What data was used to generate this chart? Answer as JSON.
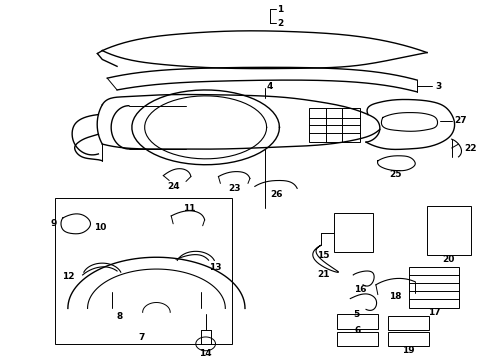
{
  "background_color": "#ffffff",
  "line_color": "#000000",
  "fig_width": 4.9,
  "fig_height": 3.6,
  "dpi": 100,
  "label_fontsize": 6.5,
  "label_fontweight": "bold"
}
